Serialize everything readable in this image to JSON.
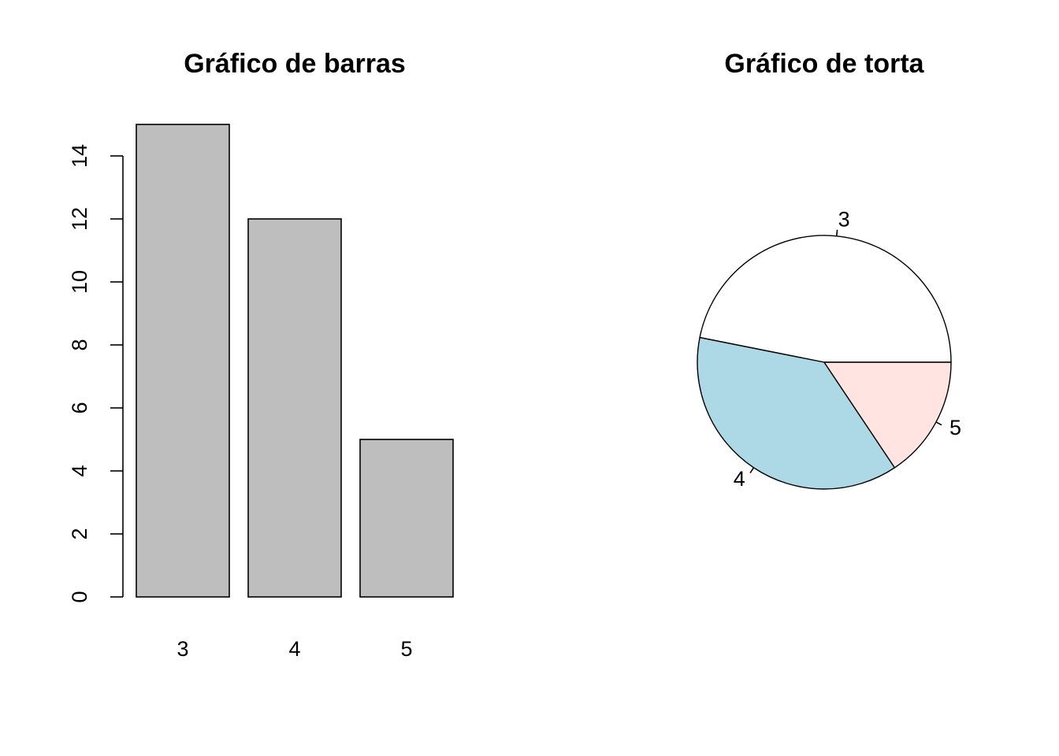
{
  "chart_data": [
    {
      "type": "bar",
      "title": "Gráfico de barras",
      "categories": [
        "3",
        "4",
        "5"
      ],
      "values": [
        15,
        12,
        5
      ],
      "ylim": [
        0,
        14
      ],
      "yticks": [
        0,
        2,
        4,
        6,
        8,
        10,
        12,
        14
      ],
      "xlabel": "",
      "ylabel": "",
      "bar_color": "#bebebe",
      "grid": false
    },
    {
      "type": "pie",
      "title": "Gráfico de torta",
      "labels": [
        "3",
        "4",
        "5"
      ],
      "values": [
        15,
        12,
        5
      ],
      "colors": [
        "#ffffff",
        "#add8e6",
        "#ffe4e1"
      ]
    }
  ]
}
